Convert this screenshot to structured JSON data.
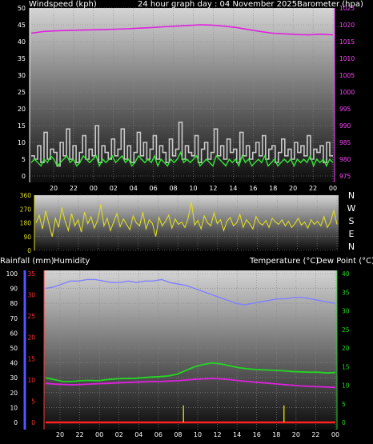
{
  "header": {
    "wind_label": "Windspeed (kph)",
    "title": "24 hour graph day : 04 November 2025",
    "baro_label": "Barometer (hpa)",
    "rain_label": "Rainfall (mm)",
    "humidity_label": "Humidity",
    "temp_label": "Temperature (°C)",
    "dew_label": "Dew Point (°C)"
  },
  "colors": {
    "wind_gust": "#c8c8c8",
    "wind_avg": "#33e833",
    "barometer": "#e020e0",
    "wind_dir": "#dddd22",
    "humidity": "#8080ff",
    "temperature": "#22d822",
    "dew_point": "#e020e0",
    "rainfall": "#ff2020",
    "rain_bar": "#cccc00",
    "axis_left": "#ffffff",
    "axis_right_baro": "#ff44ff",
    "axis_right_temp": "#22d822",
    "axis_rain": "#ff3333",
    "axis_hum": "#5555ff"
  },
  "chart_data": [
    {
      "type": "line",
      "name": "wind_barometer",
      "x_tick_labels": [
        "20",
        "22",
        "00",
        "02",
        "04",
        "06",
        "08",
        "10",
        "12",
        "14",
        "16",
        "18",
        "20",
        "22",
        "00"
      ],
      "y_left": {
        "label": "Windspeed (kph)",
        "range": [
          0,
          50
        ],
        "ticks": [
          0,
          5,
          10,
          15,
          20,
          25,
          30,
          35,
          40,
          45,
          50
        ]
      },
      "y_right": {
        "label": "Barometer (hpa)",
        "range": [
          975,
          1025
        ],
        "ticks": [
          975,
          980,
          985,
          990,
          995,
          1000,
          1005,
          1010,
          1015,
          1020,
          1025
        ]
      },
      "series": [
        {
          "name": "Windspeed (kph)",
          "axis": "left",
          "values": [
            6,
            5,
            9,
            4,
            13,
            5,
            8,
            7,
            3,
            10,
            6,
            14,
            5,
            9,
            4,
            7,
            12,
            5,
            8,
            6,
            15,
            4,
            9,
            7,
            5,
            11,
            6,
            8,
            14,
            5,
            9,
            4,
            7,
            13,
            6,
            10,
            5,
            8,
            12,
            5,
            9,
            7,
            4,
            11,
            6,
            8,
            16,
            5,
            9,
            7,
            6,
            12,
            4,
            8,
            10,
            5,
            7,
            14,
            6,
            9,
            5,
            11,
            7,
            8,
            4,
            13,
            6,
            9,
            5,
            7,
            10,
            6,
            12,
            5,
            8,
            9,
            4,
            7,
            11,
            6,
            8,
            5,
            10,
            7,
            9,
            6,
            12,
            5,
            8,
            7,
            9,
            4,
            10,
            6
          ]
        },
        {
          "name": "Windspeed avg",
          "axis": "left",
          "values": [
            4,
            5,
            4,
            3,
            5,
            4,
            6,
            5,
            3,
            4,
            5,
            6,
            4,
            5,
            3,
            4,
            6,
            5,
            4,
            5,
            6,
            3,
            5,
            4,
            5,
            6,
            4,
            5,
            6,
            4,
            5,
            3,
            4,
            6,
            5,
            4,
            5,
            4,
            6,
            3,
            5,
            4,
            3,
            5,
            4,
            5,
            7,
            4,
            5,
            4,
            5,
            6,
            3,
            4,
            5,
            4,
            3,
            6,
            5,
            4,
            3,
            5,
            4,
            5,
            3,
            6,
            4,
            5,
            3,
            4,
            5,
            4,
            6,
            3,
            4,
            5,
            3,
            4,
            5,
            4,
            5,
            3,
            5,
            4,
            5,
            4,
            6,
            3,
            5,
            4,
            5,
            3,
            5,
            4
          ]
        },
        {
          "name": "Barometer (hpa)",
          "axis": "right",
          "values": [
            1017.5,
            1018,
            1018.2,
            1018.3,
            1018.4,
            1018.5,
            1018.6,
            1018.7,
            1018.8,
            1019,
            1019.2,
            1019.4,
            1019.6,
            1019.8,
            1020,
            1019.9,
            1019.6,
            1019.2,
            1018.6,
            1018,
            1017.5,
            1017.3,
            1017.1,
            1017,
            1017.2,
            1017
          ]
        }
      ]
    },
    {
      "type": "line",
      "name": "wind_direction",
      "x_tick_labels": [
        "20",
        "22",
        "00",
        "02",
        "04",
        "06",
        "08",
        "10",
        "12",
        "14",
        "16",
        "18",
        "20",
        "22",
        "00"
      ],
      "y_left": {
        "range": [
          0,
          360
        ],
        "ticks": [
          0,
          90,
          180,
          270,
          360
        ]
      },
      "y_right_labels": [
        "N",
        "W",
        "S",
        "E",
        "N"
      ],
      "series": [
        {
          "name": "Wind direction",
          "values": [
            180,
            230,
            140,
            260,
            170,
            90,
            210,
            150,
            280,
            190,
            130,
            240,
            160,
            200,
            120,
            250,
            175,
            220,
            145,
            195,
            300,
            160,
            210,
            130,
            185,
            240,
            155,
            205,
            170,
            135,
            225,
            180,
            160,
            250,
            140,
            200,
            175,
            90,
            215,
            160,
            190,
            230,
            145,
            205,
            170,
            185,
            150,
            210,
            320,
            165,
            195,
            140,
            225,
            180,
            160,
            245,
            175,
            200,
            130,
            190,
            215,
            160,
            180,
            235,
            150,
            200,
            175,
            140,
            220,
            180,
            165,
            195,
            150,
            210,
            185,
            170,
            200,
            160,
            190,
            150,
            175,
            210,
            165,
            185,
            145,
            200,
            170,
            190,
            160,
            220,
            150,
            185,
            260,
            170
          ]
        }
      ]
    },
    {
      "type": "line",
      "name": "rain_humidity_temperature",
      "x_tick_labels": [
        "20",
        "22",
        "00",
        "02",
        "04",
        "06",
        "08",
        "10",
        "12",
        "14",
        "16",
        "18",
        "20",
        "22",
        "00"
      ],
      "y_rain": {
        "label": "Rainfall (mm)",
        "range": [
          0,
          35
        ],
        "ticks": [
          0,
          5,
          10,
          15,
          20,
          25,
          30,
          35
        ]
      },
      "y_humidity": {
        "label": "Humidity",
        "range": [
          0,
          100
        ],
        "ticks": [
          0,
          10,
          20,
          30,
          40,
          50,
          60,
          70,
          80,
          90,
          100
        ]
      },
      "y_temperature": {
        "label": "Temperature (°C)",
        "range": [
          0,
          40
        ],
        "ticks": [
          0,
          5,
          10,
          15,
          20,
          25,
          30,
          35,
          40
        ]
      },
      "series": [
        {
          "name": "Humidity",
          "axis": "humidity",
          "values": [
            90,
            91,
            93,
            95,
            95,
            96,
            96,
            95,
            94,
            94,
            95,
            94,
            95,
            95,
            96,
            94,
            93,
            92,
            90,
            88,
            86,
            84,
            82,
            80,
            79,
            80,
            81,
            82,
            83,
            83,
            84,
            84,
            83,
            82,
            81,
            80
          ]
        },
        {
          "name": "Temperature (°C)",
          "axis": "temperature",
          "values": [
            12,
            11.5,
            11,
            11,
            11.2,
            11.3,
            11.2,
            11.5,
            11.7,
            11.8,
            11.8,
            12,
            12.2,
            12.3,
            12.5,
            13,
            14,
            15,
            15.6,
            16,
            15.7,
            15.2,
            14.7,
            14.4,
            14.2,
            14.1,
            14,
            13.9,
            13.7,
            13.6,
            13.5,
            13.5,
            13.3,
            13.4
          ]
        },
        {
          "name": "Dew Point (°C)",
          "axis": "temperature",
          "values": [
            10.5,
            10.3,
            10.2,
            10.1,
            10.2,
            10.3,
            10.4,
            10.5,
            10.6,
            10.7,
            10.8,
            10.9,
            11,
            11,
            11.1,
            11.2,
            11.4,
            11.6,
            11.7,
            11.8,
            11.7,
            11.5,
            11.2,
            11,
            10.8,
            10.6,
            10.4,
            10.2,
            10,
            9.8,
            9.7,
            9.6,
            9.5,
            9.4
          ]
        },
        {
          "name": "Rainfall (mm)",
          "axis": "rain",
          "values": [
            0,
            0,
            0,
            0,
            0,
            0,
            0,
            0,
            0,
            0,
            0,
            0,
            0,
            0,
            0,
            0,
            0,
            0,
            0,
            0,
            0,
            0,
            0,
            0,
            0,
            0,
            0,
            0,
            0,
            0,
            0,
            0,
            0,
            0
          ]
        },
        {
          "name": "Rain rate",
          "axis": "temperature",
          "type": "bar",
          "x_positions": [
            0.476,
            0.819
          ],
          "values": [
            2,
            2
          ]
        }
      ]
    }
  ]
}
